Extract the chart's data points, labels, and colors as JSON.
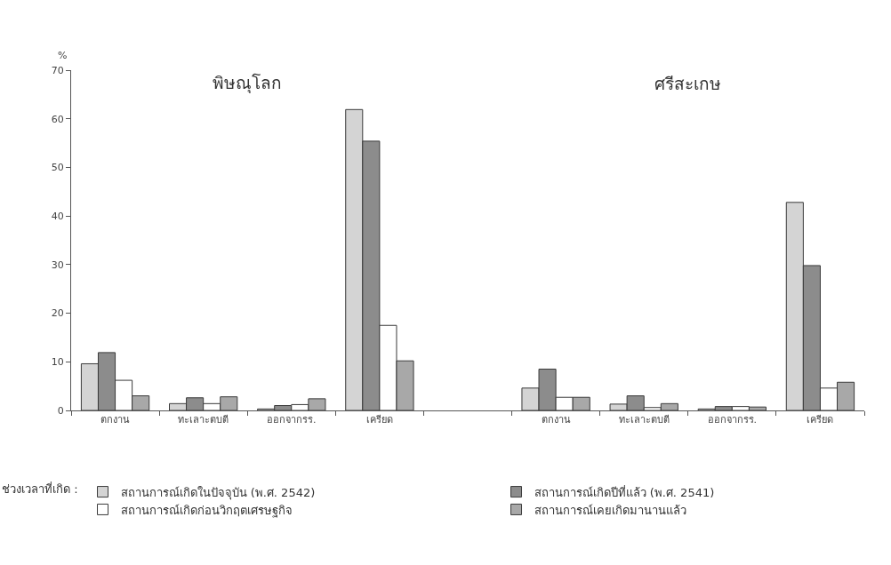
{
  "chart_data": {
    "type": "bar",
    "categories": [
      "ตกงาน",
      "ทะเลาะตบตี",
      "ออกจากรร.",
      "เครียด",
      null,
      "ตกงาน",
      "ทะเลาะตบตี",
      "ออกจากรร.",
      "เครียด"
    ],
    "ylabel": "%",
    "annotations": [
      "พิษณุโลก",
      "ศรีสะเกษ"
    ],
    "legend_title": "ช่วงเวลาที่เกิด :",
    "series": [
      {
        "name": "สถานการณ์เกิดในปัจจุบัน (พ.ศ. 2542)",
        "color": "#d4d4d4",
        "values": [
          9.6,
          1.4,
          0.3,
          61.9,
          null,
          4.6,
          1.3,
          0.3,
          42.8
        ]
      },
      {
        "name": "สถานการณ์เกิดปีที่แล้ว (พ.ศ. 2541)",
        "color": "#8c8c8c",
        "values": [
          11.9,
          2.6,
          1.0,
          55.4,
          null,
          8.5,
          3.0,
          0.8,
          29.8
        ]
      },
      {
        "name": "สถานการณ์เกิดก่อนวิกฤตเศรษฐกิจ",
        "color": "#ffffff",
        "values": [
          6.2,
          1.4,
          1.2,
          17.5,
          null,
          2.7,
          0.6,
          0.8,
          4.6
        ]
      },
      {
        "name": "สถานการณ์เคยเกิดมานานแล้ว",
        "color": "#a8a8a8",
        "values": [
          3.0,
          2.8,
          2.4,
          10.2,
          null,
          2.7,
          1.4,
          0.7,
          5.8
        ]
      }
    ],
    "ylim": [
      0,
      70
    ],
    "yticks": [
      0,
      10,
      20,
      30,
      40,
      50,
      60,
      70
    ],
    "legend": "bottom"
  }
}
